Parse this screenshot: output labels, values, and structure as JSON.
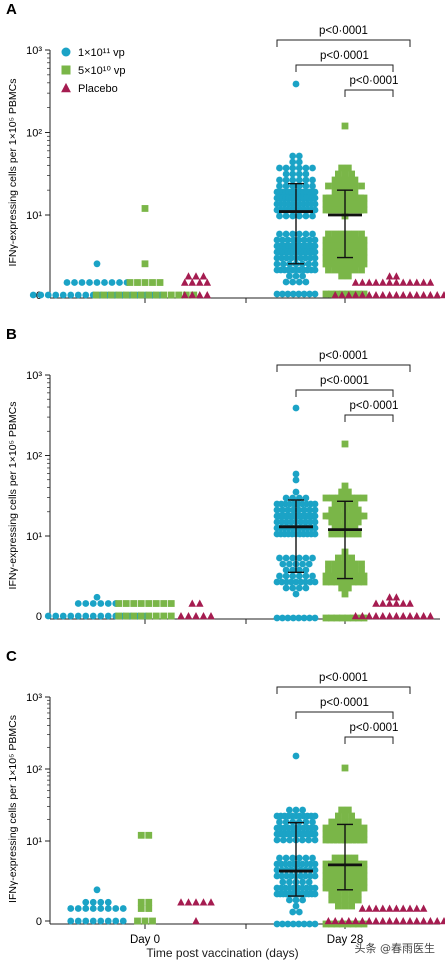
{
  "chart_data": [
    {
      "type": "scatter",
      "panel_label": "A",
      "ylabel": "IFNγ-expressing cells per 1×10⁵ PBMCs",
      "y_scale": "log",
      "y_ticks": [
        "0",
        "10¹",
        "10²",
        "10³"
      ],
      "groups": [
        "Day 0",
        "Day 28"
      ],
      "series": [
        {
          "name": "1×10¹¹ vp",
          "color": "#1ba3c6",
          "marker": "circle",
          "day0": {
            "values": {
              "0": 18,
              "2": 9,
              "5": 1
            }
          },
          "day28": {
            "median": 11,
            "q1": 5,
            "q3": 24,
            "min": 0,
            "max": 380,
            "n": 160
          }
        },
        {
          "name": "5×10¹⁰ vp",
          "color": "#7ab648",
          "marker": "square",
          "day0": {
            "values": {
              "0": 14,
              "2": 5,
              "5": 1,
              "12": 1
            }
          },
          "day28": {
            "median": 10,
            "q1": 6,
            "q3": 20,
            "min": 0,
            "max": 130,
            "n": 150
          }
        },
        {
          "name": "Placebo",
          "color": "#a51c50",
          "marker": "triangle",
          "day0": {
            "values": {
              "0": 4,
              "2": 4,
              "3": 3
            }
          },
          "day28": {
            "values": {
              "0": 18,
              "2": 12,
              "3": 2
            }
          }
        }
      ],
      "significance": [
        "p<0·0001",
        "p<0·0001",
        "p<0·0001"
      ]
    },
    {
      "type": "scatter",
      "panel_label": "B",
      "ylabel": "IFNγ-expressing cells per 1×10⁵ PBMCs",
      "y_scale": "log",
      "y_ticks": [
        "0",
        "10¹",
        "10²",
        "10³"
      ],
      "groups": [
        "Day 0",
        "Day 28"
      ],
      "series": [
        {
          "name": "1×10¹¹ vp",
          "color": "#1ba3c6",
          "marker": "circle",
          "day0": {
            "values": {
              "0": 14,
              "2": 6,
              "3": 1
            }
          },
          "day28": {
            "median": 13,
            "q1": 7,
            "q3": 28,
            "min": 0,
            "max": 380,
            "n": 110
          }
        },
        {
          "name": "5×10¹⁰ vp",
          "color": "#7ab648",
          "marker": "square",
          "day0": {
            "values": {
              "0": 8,
              "2": 8
            }
          },
          "day28": {
            "median": 12,
            "q1": 6,
            "q3": 27,
            "min": 0,
            "max": 130,
            "n": 80
          }
        },
        {
          "name": "Placebo",
          "color": "#a51c50",
          "marker": "triangle",
          "day0": {
            "values": {
              "0": 5,
              "2": 2
            }
          },
          "day28": {
            "values": {
              "0": 12,
              "2": 6,
              "3": 2
            }
          }
        }
      ],
      "significance": [
        "p<0·0001",
        "p<0·0001",
        "p<0·0001"
      ]
    },
    {
      "type": "scatter",
      "panel_label": "C",
      "ylabel": "IFNγ-expressing cells per 1×10⁵ PBMCs",
      "y_scale": "log",
      "y_ticks": [
        "0",
        "10¹",
        "10²",
        "10³"
      ],
      "groups": [
        "Day 0",
        "Day 28"
      ],
      "series": [
        {
          "name": "1×10¹¹ vp",
          "color": "#1ba3c6",
          "marker": "circle",
          "day0": {
            "values": {
              "0": 8,
              "2": 8,
              "3": 4,
              "5": 1
            }
          },
          "day28": {
            "median": 8,
            "q1": 4,
            "q3": 18,
            "min": 0,
            "max": 140,
            "n": 120
          }
        },
        {
          "name": "5×10¹⁰ vp",
          "color": "#7ab648",
          "marker": "square",
          "day0": {
            "values": {
              "0": 3,
              "2": 2,
              "3": 2,
              "12": 2
            }
          },
          "day28": {
            "median": 9,
            "q1": 5,
            "q3": 17,
            "min": 0,
            "max": 100,
            "n": 110
          }
        },
        {
          "name": "Placebo",
          "color": "#a51c50",
          "marker": "triangle",
          "day0": {
            "values": {
              "0": 1,
              "3": 5
            }
          },
          "day28": {
            "values": {
              "0": 20,
              "2": 10
            }
          }
        }
      ],
      "significance": [
        "p<0·0001",
        "p<0·0001",
        "p<0·0001"
      ]
    }
  ],
  "xlabel": "Time post vaccination (days)",
  "watermark": "头条 @春雨医生"
}
